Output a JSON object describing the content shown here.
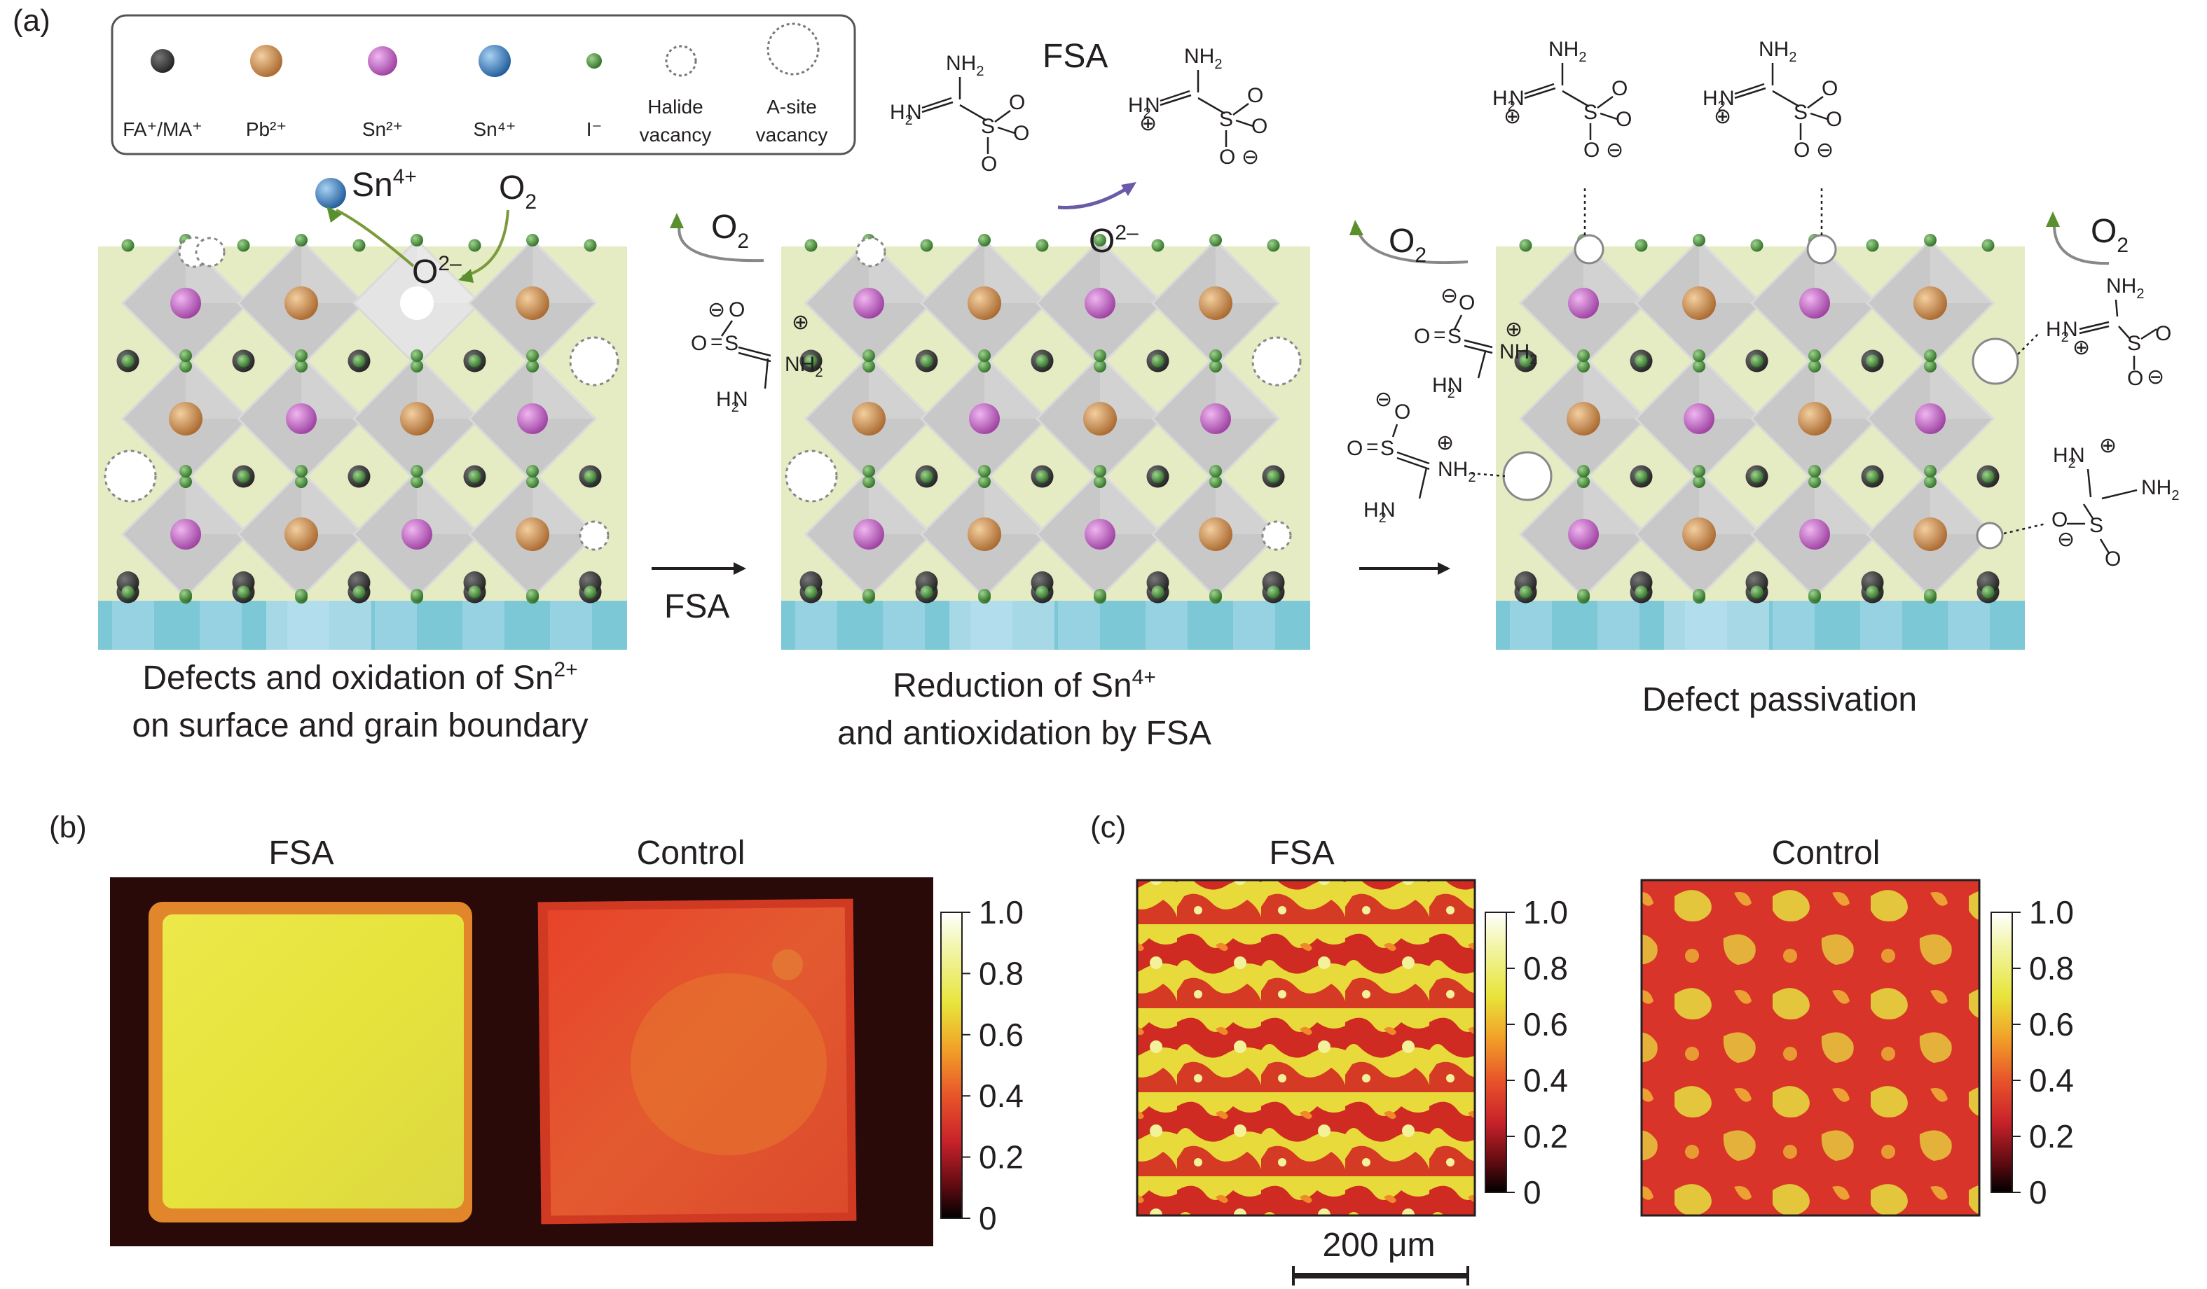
{
  "panel_a": {
    "label": "(a)",
    "legend": [
      {
        "label": "FA⁺/MA⁺",
        "icon": "dark-sphere",
        "color": "#3a3a3a"
      },
      {
        "label": "Pb²⁺",
        "icon": "orange-sphere",
        "color": "#c98c4a"
      },
      {
        "label": "Sn²⁺",
        "icon": "magenta-sphere",
        "color": "#c765c9"
      },
      {
        "label": "Sn⁴⁺",
        "icon": "blue-sphere",
        "color": "#3b7bbf"
      },
      {
        "label": "I⁻",
        "icon": "green-dot",
        "color": "#4a8f3d"
      },
      {
        "label1": "Halide",
        "label2": "vacancy",
        "icon": "small-dashed-circle"
      },
      {
        "label1": "A-site",
        "label2": "vacancy",
        "icon": "large-dashed-circle"
      }
    ],
    "step1": {
      "caption_line1": "Defects and oxidation of Sn",
      "caption_sup": "2+",
      "caption_line2": "on surface and grain boundary",
      "sn4_label": "Sn",
      "sn4_sup": "4+",
      "o2_label": "O",
      "o2_sub": "2",
      "o2minus_label": "O",
      "o2minus_sup": "2–"
    },
    "arrow1_label": "FSA",
    "step2": {
      "caption_line1": "Reduction of Sn",
      "caption_sup": "4+",
      "caption_line2": "and antioxidation by FSA",
      "title": "FSA",
      "o2_label": "O",
      "o2_sub": "2",
      "o2minus_label": "O",
      "o2minus_sup": "2–"
    },
    "step3": {
      "caption": "Defect passivation",
      "o2_label": "O",
      "o2_sub": "2"
    },
    "chem": {
      "nh2": "NH",
      "h2n": "H",
      "two": "2",
      "s": "S",
      "o": "O",
      "n": "N",
      "minus": "⊖",
      "plus": "⊕"
    },
    "colors": {
      "background_band": "#e5ecc4",
      "octahedron": "#c8c8c8",
      "octahedron_edge": "#d9d9d9",
      "substrate": "#7cc8d6",
      "substrate_light": "#a9d8ea",
      "arrow_green": "#5a8f2e",
      "arrow_purple": "#6a5aa8"
    }
  },
  "panel_b": {
    "label": "(b)",
    "title_left": "FSA",
    "title_right": "Control",
    "colorbar_ticks": [
      "1.0",
      "0.8",
      "0.6",
      "0.4",
      "0.2",
      "0"
    ]
  },
  "panel_c": {
    "label": "(c)",
    "title_left": "FSA",
    "title_right": "Control",
    "colorbar_ticks": [
      "1.0",
      "0.8",
      "0.6",
      "0.4",
      "0.2",
      "0"
    ],
    "scale_bar": "200 μm"
  }
}
